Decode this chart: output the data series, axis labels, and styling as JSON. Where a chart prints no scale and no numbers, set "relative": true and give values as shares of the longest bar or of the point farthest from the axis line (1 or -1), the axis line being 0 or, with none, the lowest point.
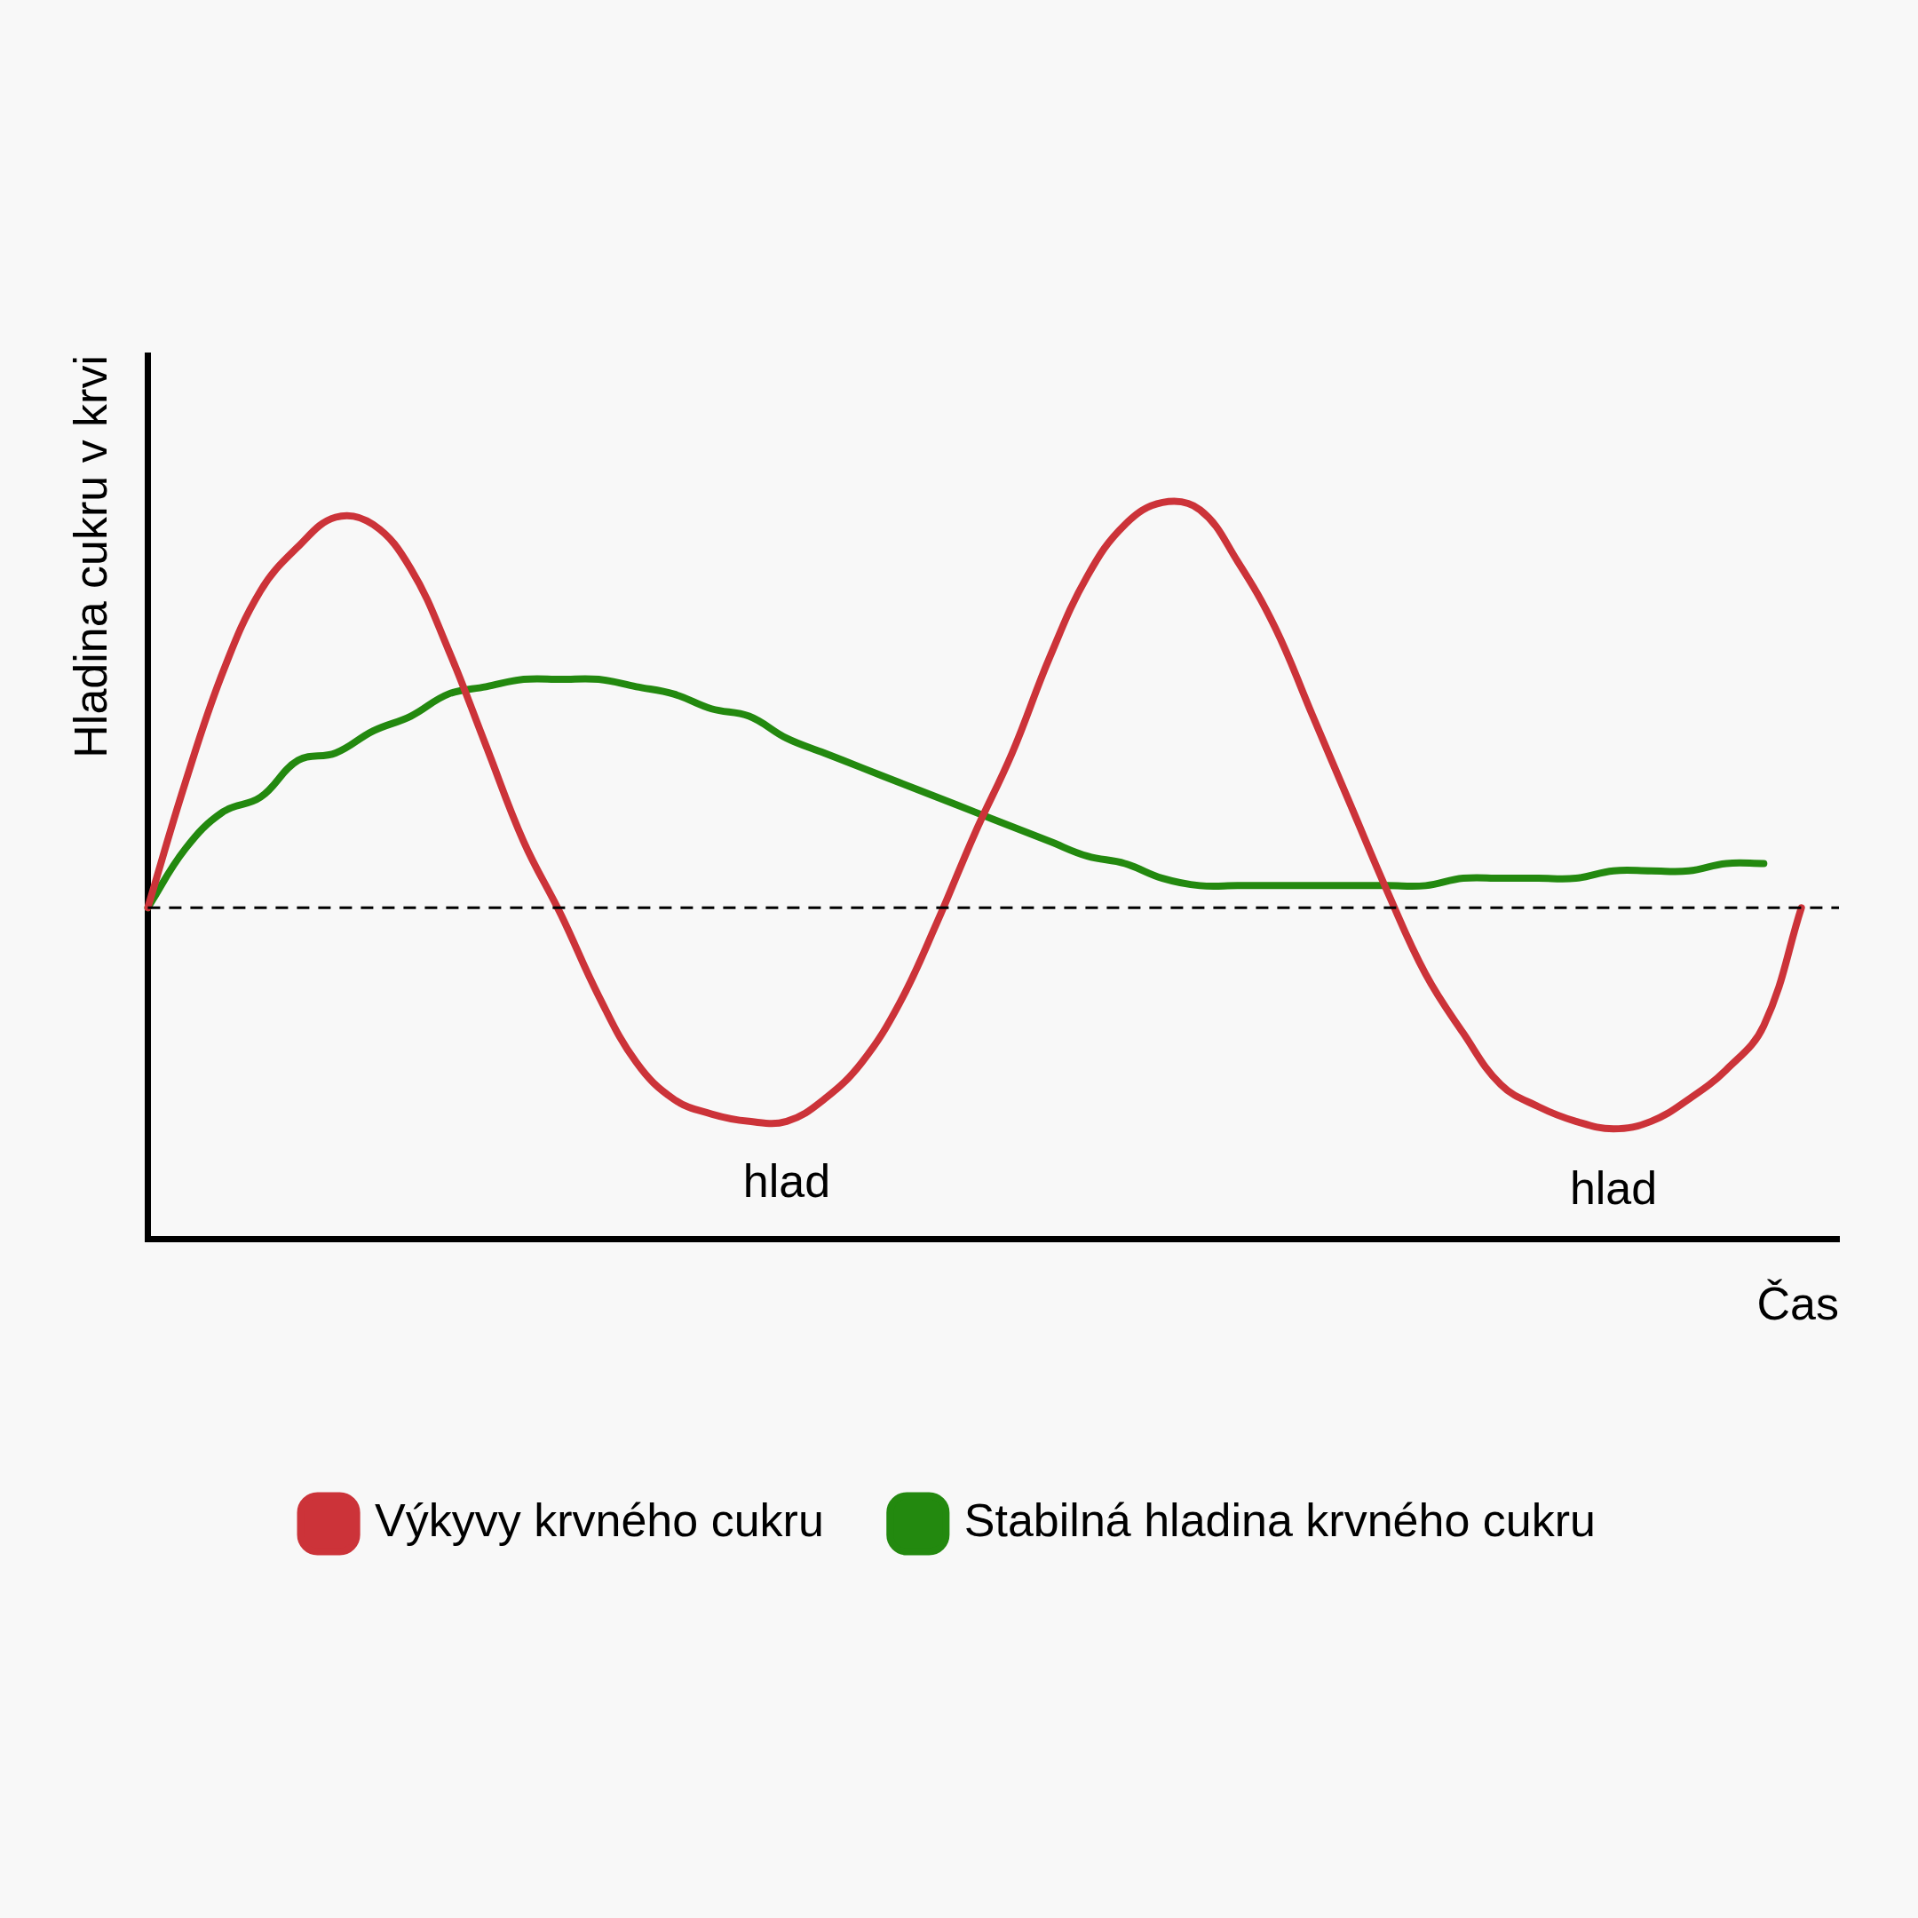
{
  "chart_data": {
    "type": "line",
    "relative": true,
    "xlabel": "Čas",
    "ylabel": "Hladina cukru v krvi",
    "legend": "bottom",
    "grid": false,
    "marker": "none",
    "line_style": "solid",
    "categories": [
      null,
      null,
      null,
      null,
      null,
      null,
      null,
      null,
      null,
      null,
      null,
      null,
      null,
      null,
      null,
      null,
      null,
      null,
      null,
      null,
      null,
      null,
      null,
      null,
      null,
      null,
      null,
      null,
      null,
      null,
      null,
      null,
      null,
      null,
      null,
      null,
      null,
      null,
      null,
      null,
      null,
      null,
      null,
      null,
      null,
      null
    ],
    "series": [
      {
        "name": "Výkyvy krvného cukru",
        "color": "#cc3339",
        "values": [
          0.45,
          0.62,
          0.77,
          0.88,
          0.94,
          0.98,
          0.97,
          0.91,
          0.8,
          0.67,
          0.54,
          0.44,
          0.33,
          0.24,
          0.19,
          0.17,
          0.16,
          0.16,
          0.19,
          0.24,
          0.32,
          0.43,
          0.55,
          0.66,
          0.79,
          0.9,
          0.97,
          1,
          0.99,
          0.92,
          0.83,
          0.71,
          0.59,
          0.47,
          0.36,
          0.28,
          0.21,
          0.18,
          0.16,
          0.15,
          0.16,
          0.19,
          0.23,
          0.29,
          0.45,
          null
        ]
      },
      {
        "name": "Stabilná hladina krvného cukru",
        "color": "#23890f",
        "values": [
          0.45,
          0.53,
          0.58,
          0.6,
          0.65,
          0.66,
          0.69,
          0.71,
          0.74,
          0.75,
          0.76,
          0.76,
          0.76,
          0.75,
          0.74,
          0.72,
          0.71,
          0.68,
          0.66,
          0.64,
          0.62,
          0.6,
          0.58,
          0.56,
          0.54,
          0.52,
          0.51,
          0.49,
          0.48,
          0.48,
          0.48,
          0.48,
          0.48,
          0.48,
          0.48,
          0.49,
          0.49,
          0.49,
          0.49,
          0.5,
          0.5,
          0.5,
          0.51,
          0.51,
          null,
          null
        ]
      }
    ],
    "ref_lines": [
      {
        "axis": "y",
        "value": 0.45,
        "color": "#000000",
        "line_style": "dashed"
      }
    ],
    "annotations": [
      "hlad",
      "hlad"
    ]
  }
}
